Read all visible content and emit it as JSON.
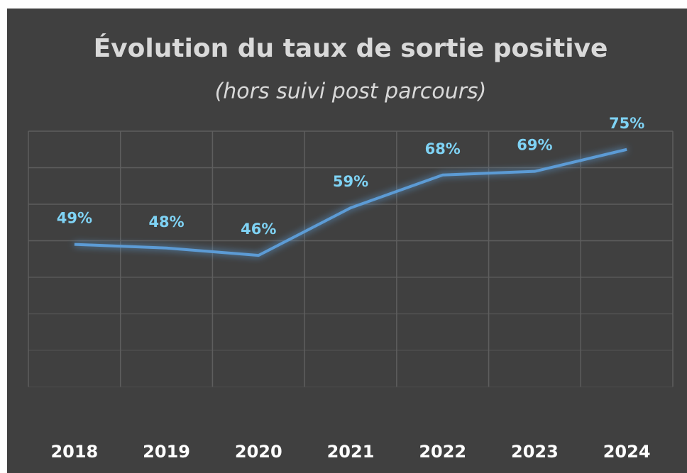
{
  "chart_data": {
    "type": "line",
    "title": "Évolution du taux de sortie positive",
    "subtitle": "(hors suivi post parcours)",
    "categories": [
      "2018",
      "2019",
      "2020",
      "2021",
      "2022",
      "2023",
      "2024"
    ],
    "series": [
      {
        "name": "Taux de sortie positive",
        "color": "#5b9bd5",
        "values": [
          49,
          48,
          46,
          59,
          68,
          69,
          75
        ],
        "value_labels": [
          "49%",
          "48%",
          "46%",
          "59%",
          "68%",
          "69%",
          "75%"
        ]
      }
    ],
    "ylim": [
      0,
      80
    ],
    "yticks": [
      10,
      20,
      30,
      40,
      50,
      60,
      70,
      80
    ],
    "grid": true
  }
}
